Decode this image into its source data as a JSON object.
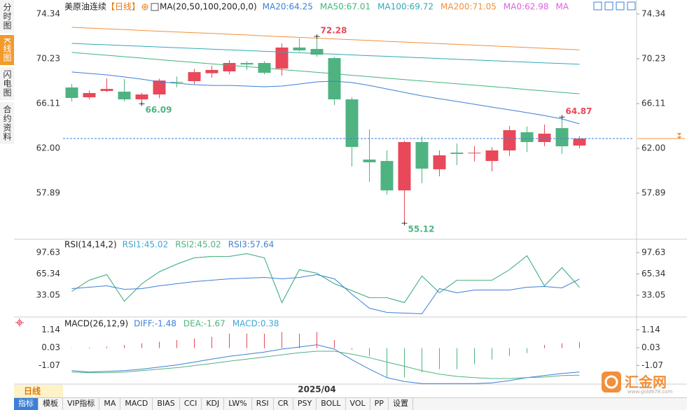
{
  "sidebar": {
    "tabs": [
      "分时图",
      "K线图",
      "闪电图",
      "合约资料"
    ],
    "active": 1
  },
  "chart_data": [
    {
      "type": "candlestick",
      "title": "美原油连续",
      "period": "【日线】",
      "indicator": "MA(20,50,100,200,0,0)",
      "categories": [
        null,
        null,
        null,
        null,
        null,
        null,
        null,
        null,
        null,
        null,
        null,
        null,
        null,
        null,
        "2025/04",
        null,
        null,
        null,
        null,
        null,
        null,
        null,
        null,
        null,
        null,
        null,
        null,
        null,
        null,
        null
      ],
      "open": [
        67.59,
        66.69,
        67.27,
        67.21,
        66.5,
        66.95,
        68.1,
        68.17,
        68.9,
        69.07,
        69.84,
        69.84,
        69.33,
        71.26,
        71.13,
        70.29,
        66.5,
        60.97,
        60.84,
        58.14,
        62.58,
        60.08,
        61.61,
        61.55,
        60.84,
        61.81,
        63.48,
        62.58,
        63.86,
        62.26
      ],
      "high": [
        67.91,
        67.3,
        68.43,
        68.36,
        67.1,
        68.4,
        68.6,
        69.3,
        69.6,
        70.1,
        70.0,
        70.0,
        71.64,
        72.09,
        72.28,
        70.4,
        66.7,
        63.74,
        61.81,
        62.7,
        63.09,
        61.81,
        62.45,
        62.2,
        62.1,
        64.06,
        64.0,
        64.19,
        64.87,
        63.1
      ],
      "low": [
        66.31,
        66.5,
        67.2,
        66.3,
        66.09,
        66.6,
        67.6,
        67.9,
        68.5,
        68.8,
        69.2,
        68.8,
        68.69,
        70.9,
        70.4,
        65.99,
        60.33,
        58.92,
        57.76,
        55.12,
        58.79,
        59.43,
        60.46,
        60.8,
        59.88,
        61.3,
        61.68,
        62.2,
        61.49,
        62.0
      ],
      "close": [
        66.63,
        67.08,
        67.46,
        66.5,
        66.95,
        68.23,
        68.05,
        69.0,
        69.2,
        69.84,
        69.7,
        68.94,
        71.26,
        71.0,
        70.61,
        66.5,
        62.13,
        60.72,
        58.14,
        62.58,
        60.14,
        61.36,
        61.49,
        61.6,
        61.81,
        63.67,
        62.58,
        63.35,
        62.19,
        62.9
      ],
      "up_color": "#e8485a",
      "down_color": "#4fb381",
      "price_line_color": "#3d7fd6",
      "price_marker_color": "#f0903c",
      "series": [
        {
          "name": "MA20:64.25",
          "color": "#3d7fd6",
          "values": [
            69.01,
            68.88,
            68.75,
            68.56,
            68.36,
            68.11,
            67.98,
            67.85,
            67.78,
            67.78,
            67.72,
            67.66,
            67.72,
            67.91,
            68.11,
            68.17,
            68.04,
            67.78,
            67.46,
            67.14,
            66.82,
            66.56,
            66.31,
            66.05,
            65.79,
            65.54,
            65.28,
            65.02,
            64.7,
            64.25
          ]
        },
        {
          "name": "MA50:67.01",
          "color": "#41b57a",
          "values": [
            70.81,
            70.68,
            70.55,
            70.42,
            70.29,
            70.15,
            70.02,
            69.89,
            69.76,
            69.63,
            69.5,
            69.37,
            69.24,
            69.11,
            68.98,
            68.85,
            68.71,
            68.58,
            68.45,
            68.32,
            68.19,
            68.06,
            67.93,
            67.8,
            67.67,
            67.54,
            67.4,
            67.27,
            67.14,
            67.01
          ]
        },
        {
          "name": "MA100:69.72",
          "color": "#31a8b8",
          "values": [
            71.64,
            71.57,
            71.51,
            71.44,
            71.38,
            71.31,
            71.24,
            71.18,
            71.11,
            71.04,
            70.98,
            70.91,
            70.85,
            70.78,
            70.71,
            70.65,
            70.58,
            70.51,
            70.45,
            70.38,
            70.32,
            70.25,
            70.18,
            70.12,
            70.05,
            69.98,
            69.92,
            69.85,
            69.79,
            69.72
          ]
        },
        {
          "name": "MA200:71.05",
          "color": "#f0903c",
          "values": [
            73.12,
            73.05,
            72.98,
            72.91,
            72.83,
            72.76,
            72.69,
            72.62,
            72.55,
            72.48,
            72.41,
            72.33,
            72.26,
            72.19,
            72.12,
            72.05,
            71.98,
            71.91,
            71.83,
            71.76,
            71.69,
            71.62,
            71.55,
            71.48,
            71.41,
            71.33,
            71.26,
            71.19,
            71.12,
            71.05
          ]
        }
      ],
      "legend_extra": [
        {
          "label": "MA0:62.98",
          "color": "#e060e0"
        },
        {
          "label": "MA",
          "color": "#e060e0"
        }
      ],
      "annotations": [
        72.28,
        66.09,
        55.12,
        64.87
      ],
      "ylim": [
        53.78,
        75.11
      ],
      "yticks": [
        74.34,
        70.23,
        66.11,
        {
          "value": 62,
          "label": "62.00"
        },
        57.89
      ]
    },
    {
      "type": "line",
      "title": "RSI(14,14,2)",
      "series": [
        {
          "name": "RSI1:45.02",
          "color": "#3ea6d8",
          "values": [
            38.87,
            55.81,
            64.28,
            24.05,
            50.52,
            68.52,
            80.16,
            89.69,
            91.81,
            91.81,
            96.04,
            89.69,
            21.94,
            71.69,
            66.4,
            50.52,
            39.93,
            29.35,
            29.35,
            21.94,
            62.16,
            36.76,
            55.81,
            55.81,
            55.81,
            71.69,
            92.86,
            47.34,
            74.87,
            45.02
          ]
        },
        {
          "name": "RSI2:45.02",
          "color": "#4fb381",
          "values": [
            38.87,
            55.81,
            64.28,
            24.05,
            50.52,
            68.52,
            80.16,
            89.69,
            91.81,
            91.81,
            96.04,
            89.69,
            21.94,
            71.69,
            66.4,
            50.52,
            39.93,
            29.35,
            29.35,
            21.94,
            62.16,
            36.76,
            55.81,
            55.81,
            55.81,
            71.69,
            92.86,
            47.34,
            74.87,
            45.02
          ]
        },
        {
          "name": "RSI3:57.64",
          "color": "#3d7fd6",
          "values": [
            43.11,
            45.23,
            47.34,
            42.05,
            43.11,
            47.34,
            50.52,
            53.69,
            55.81,
            57.93,
            58.99,
            60.05,
            57.93,
            60.05,
            64.28,
            57.93,
            34.64,
            13.47,
            7.12,
            6.06,
            4.99,
            43.11,
            36.76,
            40.99,
            40.99,
            40.99,
            45.23,
            46.28,
            44.17,
            57.64
          ]
        }
      ],
      "ylim": [
        3.41,
        115.63
      ],
      "yticks": [
        97.63,
        65.34,
        33.05
      ]
    },
    {
      "type": "combo",
      "title": "MACD(26,12,9)",
      "series": [
        {
          "name": "DIFF:-1.48",
          "type": "line",
          "color": "#3d7fd6",
          "values": [
            -1.39,
            -1.48,
            -1.44,
            -1.39,
            -1.3,
            -1.17,
            -1.04,
            -0.86,
            -0.68,
            -0.5,
            -0.37,
            -0.24,
            -0.06,
            0.07,
            0.21,
            -0.06,
            -0.72,
            -1.3,
            -1.83,
            -2.06,
            -2.19,
            -2.19,
            -2.19,
            -2.19,
            -2.15,
            -2.01,
            -1.83,
            -1.7,
            -1.57,
            -1.48
          ]
        },
        {
          "name": "DEA:-1.67",
          "type": "line",
          "color": "#4fb381",
          "values": [
            -1.48,
            -1.52,
            -1.52,
            -1.48,
            -1.39,
            -1.3,
            -1.21,
            -1.08,
            -0.95,
            -0.81,
            -0.68,
            -0.55,
            -0.41,
            -0.28,
            -0.19,
            -0.19,
            -0.37,
            -0.59,
            -0.86,
            -1.12,
            -1.39,
            -1.61,
            -1.75,
            -1.83,
            -1.88,
            -1.88,
            -1.83,
            -1.79,
            -1.7,
            -1.67
          ]
        },
        {
          "name": "MACD:0.38",
          "type": "bar",
          "color": "#3ea6d8",
          "up_color": "#e8485a",
          "down_color": "#4fb381",
          "values": [
            0.02,
            0.05,
            0.1,
            0.2,
            0.3,
            0.4,
            0.5,
            0.6,
            0.7,
            0.9,
            0.9,
            0.9,
            1.0,
            0.9,
            1.0,
            0.5,
            -0.1,
            -0.5,
            -1.86,
            -1.8,
            -1.5,
            -1.3,
            -1.3,
            -1.0,
            -0.7,
            -0.5,
            -0.3,
            0.2,
            0.3,
            0.38
          ]
        }
      ],
      "ylim": [
        -2.27,
        1.63
      ],
      "yticks": [
        1.14,
        0.03,
        -1.07
      ]
    }
  ],
  "toolbar": {
    "period": "日线",
    "tabs": [
      "指标",
      "模板",
      "VIP指标",
      "MA",
      "MACD",
      "BIAS",
      "CCI",
      "KDJ",
      "LW%",
      "RSI",
      "CR",
      "PSY",
      "BOLL",
      "VOL",
      "PP",
      "设置"
    ],
    "active": 0
  },
  "logo": {
    "name": "汇金网",
    "url": "www.gold678.com"
  }
}
